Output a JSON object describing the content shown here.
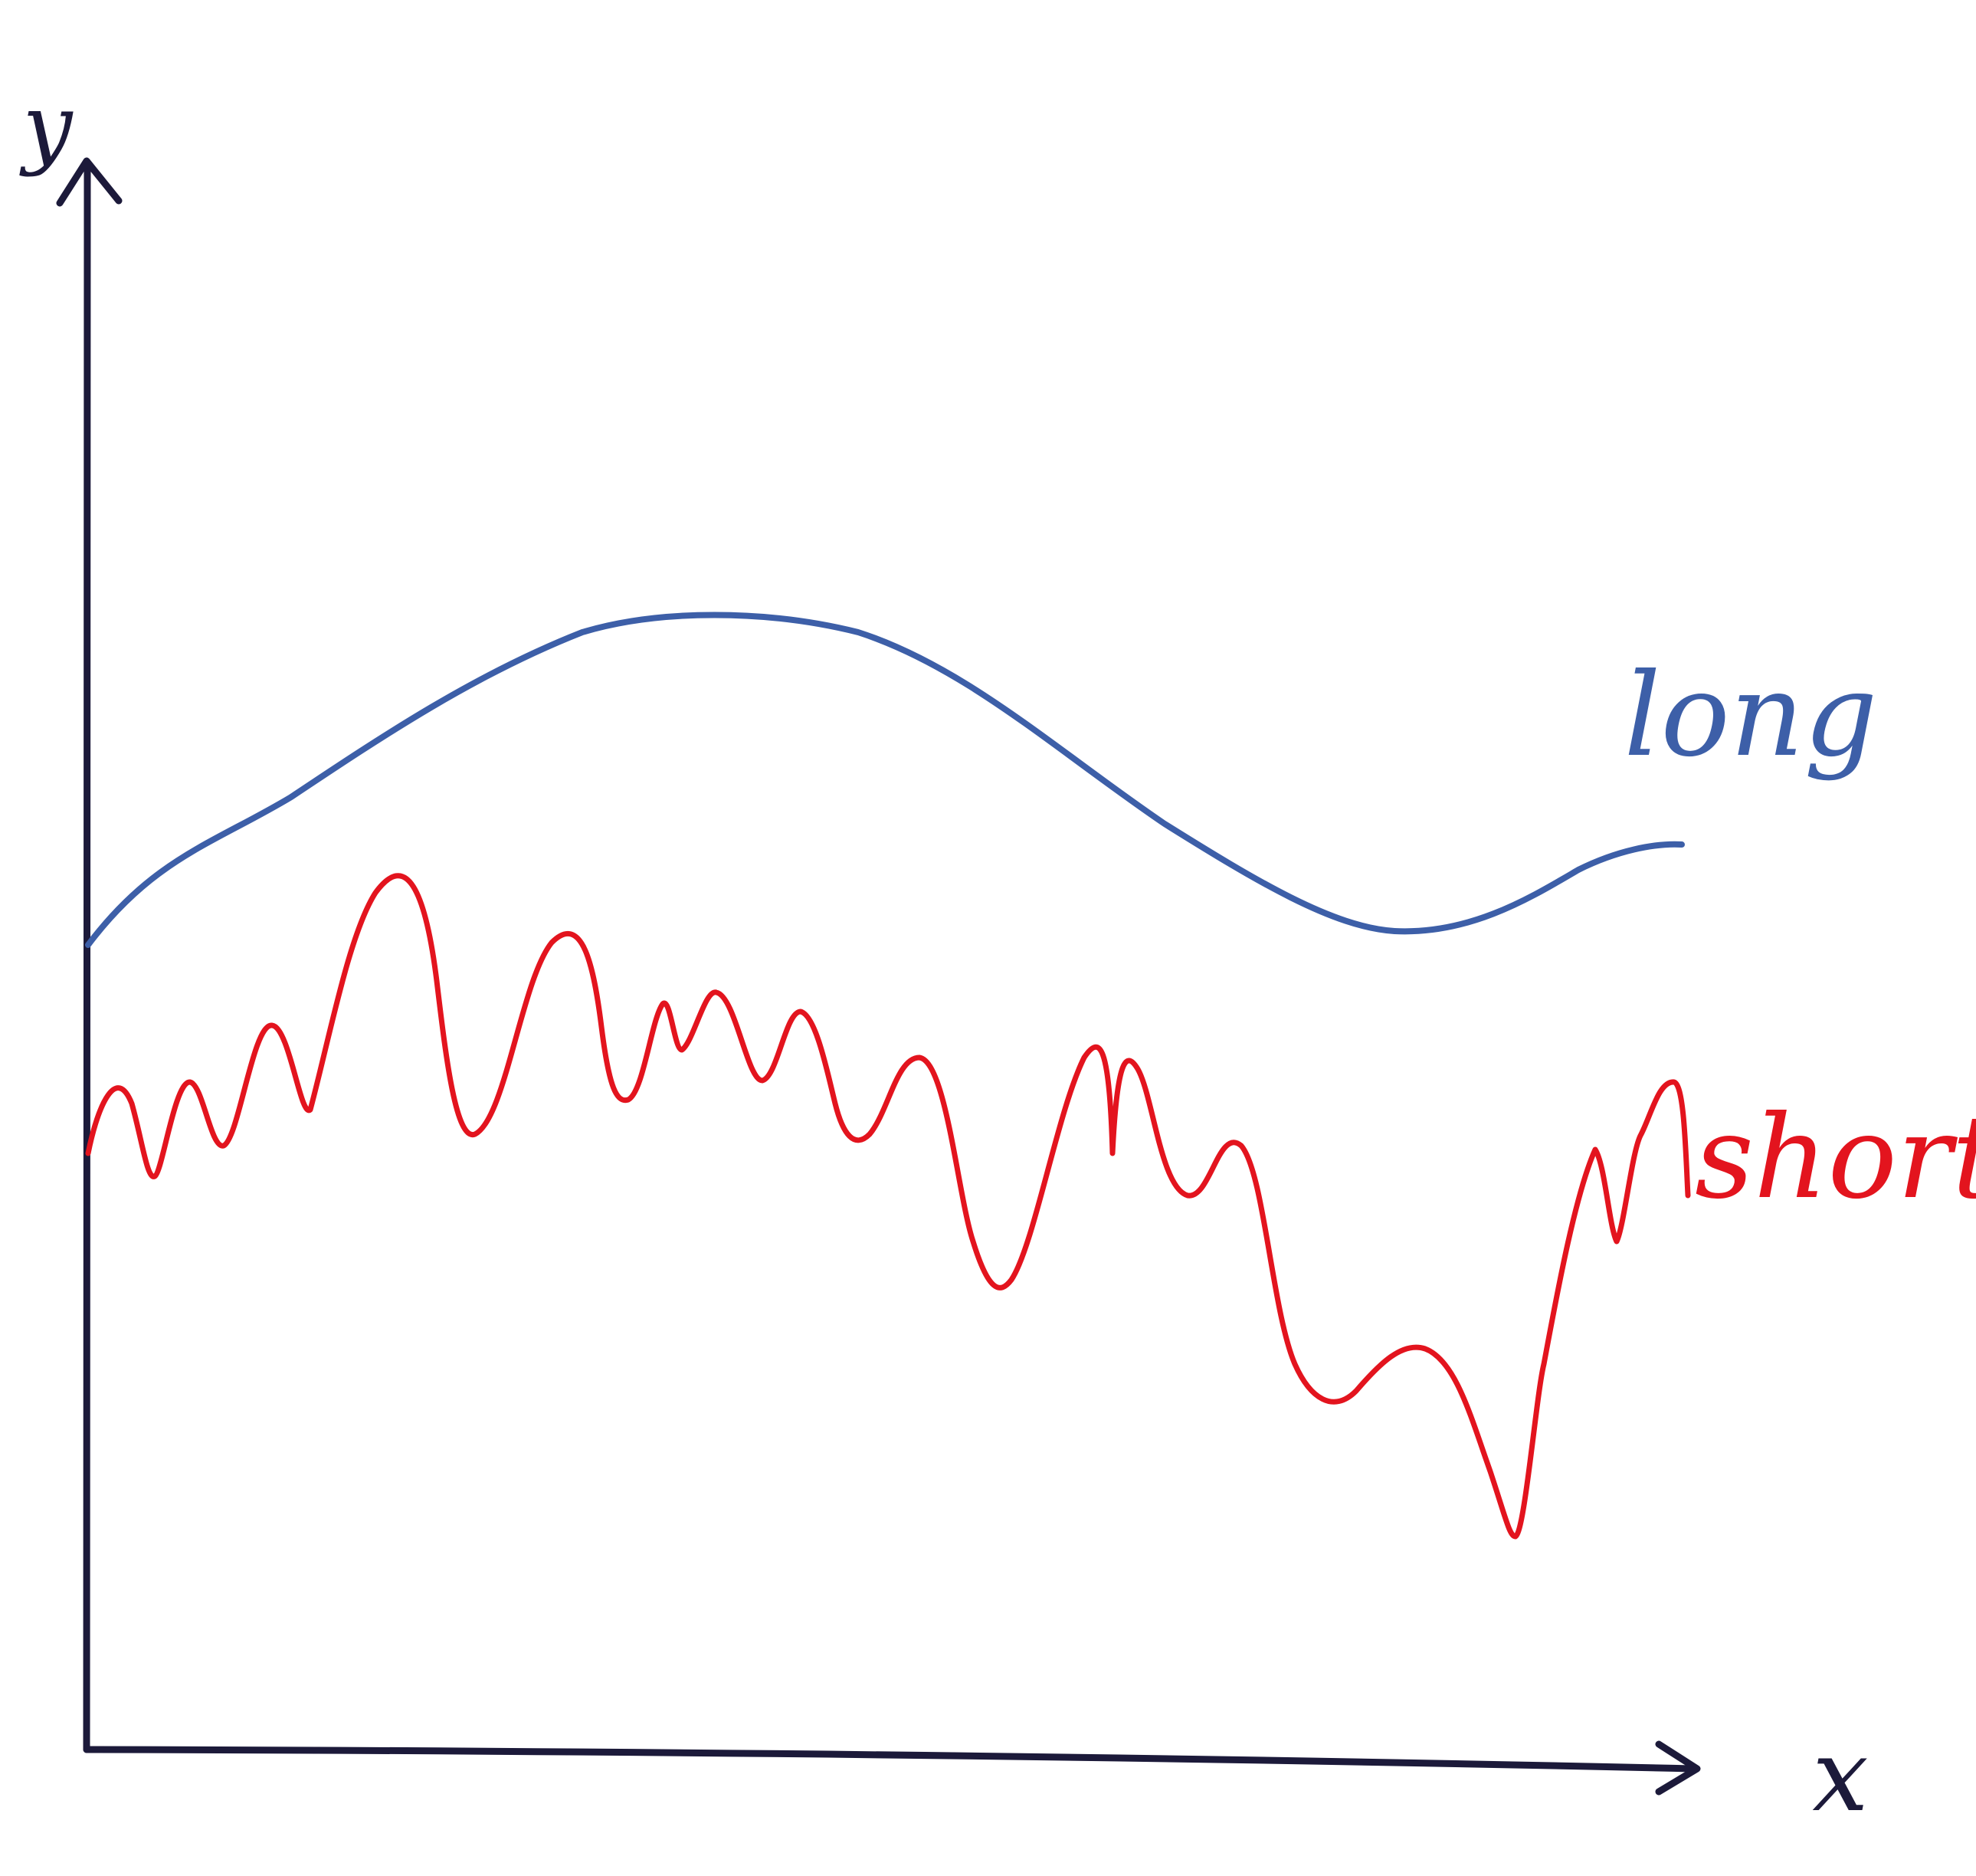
{
  "axes": {
    "x_label": "x",
    "y_label": "y",
    "ink_color": "#1c1a3a"
  },
  "curves": {
    "long": {
      "label": "long",
      "color": "#3d5fa8"
    },
    "short": {
      "label": "short",
      "color": "#e3141e"
    }
  }
}
